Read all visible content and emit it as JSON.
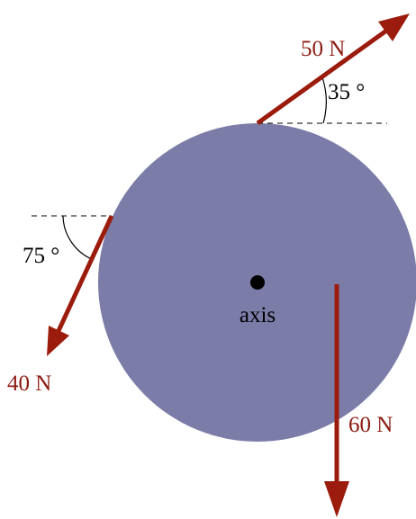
{
  "colors": {
    "disk": "#7b7ca8",
    "arrow": "#9b1b0c",
    "force_text": "#8b1a10",
    "text": "#000000",
    "reference_line": "#000000"
  },
  "disk": {
    "center_label": "axis"
  },
  "forces": [
    {
      "id": "force-top",
      "label": "50 N",
      "angle_label": "35 °",
      "direction": "up-right"
    },
    {
      "id": "force-left",
      "label": "40 N",
      "angle_label": "75 °",
      "direction": "down-left"
    },
    {
      "id": "force-bottom",
      "label": "60 N",
      "direction": "down"
    }
  ]
}
